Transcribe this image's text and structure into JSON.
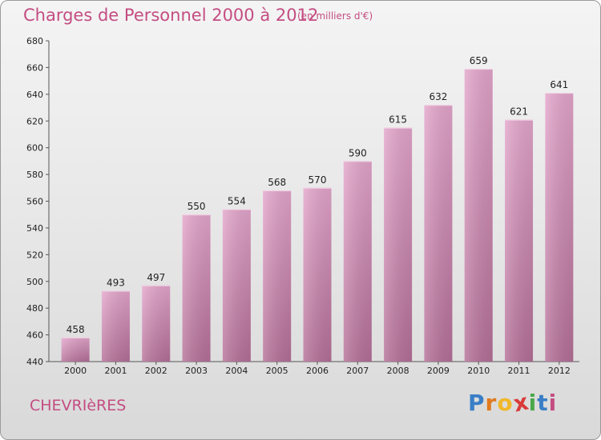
{
  "title": "Charges de Personnel 2000 à 2012",
  "subtitle": "(en milliers d'€)",
  "commune": "CHEVRIèRES",
  "logo": {
    "letters": [
      "P",
      "r",
      "o",
      "x",
      "i",
      "t",
      "i"
    ],
    "colors": [
      "#3a7fc6",
      "#e07a1f",
      "#f0b72a",
      "#d93a3a",
      "#4aa84a",
      "#3a7fc6",
      "#c44d82"
    ]
  },
  "colors": {
    "bar_top": "#e4a6cc",
    "bar_bottom": "#b57098",
    "text_accent": "#c44d82"
  },
  "chart_data": {
    "type": "bar",
    "categories": [
      "2000",
      "2001",
      "2002",
      "2003",
      "2004",
      "2005",
      "2006",
      "2007",
      "2008",
      "2009",
      "2010",
      "2011",
      "2012"
    ],
    "values": [
      458,
      493,
      497,
      550,
      554,
      568,
      570,
      590,
      615,
      632,
      659,
      621,
      641
    ],
    "title": "Charges de Personnel 2000 à 2012",
    "xlabel": "",
    "ylabel": "",
    "ylim": [
      440,
      680
    ],
    "yticks": [
      440,
      460,
      480,
      500,
      520,
      540,
      560,
      580,
      600,
      620,
      640,
      660,
      680
    ],
    "grid": false,
    "legend": "none"
  }
}
